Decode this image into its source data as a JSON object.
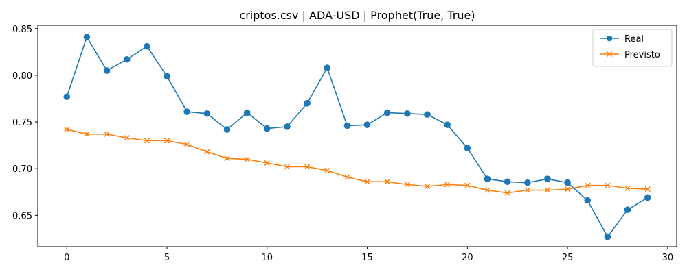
{
  "chart_data": {
    "type": "line",
    "title": "criptos.csv | ADA-USD | Prophet(True, True)",
    "xlabel": "",
    "ylabel": "",
    "xlim": [
      -1.45,
      30.45
    ],
    "ylim": [
      0.6165,
      0.8535
    ],
    "xticks": [
      0,
      5,
      10,
      15,
      20,
      25,
      30
    ],
    "yticks": [
      0.65,
      0.7,
      0.75,
      0.8,
      0.85
    ],
    "ytick_labels": [
      "0.65",
      "0.70",
      "0.75",
      "0.80",
      "0.85"
    ],
    "grid": false,
    "legend_position": "top-right",
    "x": [
      0,
      1,
      2,
      3,
      4,
      5,
      6,
      7,
      8,
      9,
      10,
      11,
      12,
      13,
      14,
      15,
      16,
      17,
      18,
      19,
      20,
      21,
      22,
      23,
      24,
      25,
      26,
      27,
      28,
      29
    ],
    "series": [
      {
        "name": "Real",
        "color": "#1f77b4",
        "marker": "circle",
        "values": [
          0.777,
          0.841,
          0.805,
          0.817,
          0.831,
          0.799,
          0.761,
          0.759,
          0.742,
          0.76,
          0.743,
          0.745,
          0.77,
          0.808,
          0.746,
          0.747,
          0.76,
          0.759,
          0.758,
          0.747,
          0.722,
          0.689,
          0.686,
          0.685,
          0.689,
          0.685,
          0.666,
          0.627,
          0.656,
          0.669
        ]
      },
      {
        "name": "Previsto",
        "color": "#ff7f0e",
        "marker": "x",
        "values": [
          0.742,
          0.737,
          0.737,
          0.733,
          0.73,
          0.73,
          0.726,
          0.718,
          0.711,
          0.71,
          0.706,
          0.702,
          0.702,
          0.698,
          0.691,
          0.686,
          0.686,
          0.683,
          0.681,
          0.683,
          0.682,
          0.677,
          0.674,
          0.677,
          0.677,
          0.678,
          0.682,
          0.682,
          0.679,
          0.678
        ]
      }
    ]
  }
}
